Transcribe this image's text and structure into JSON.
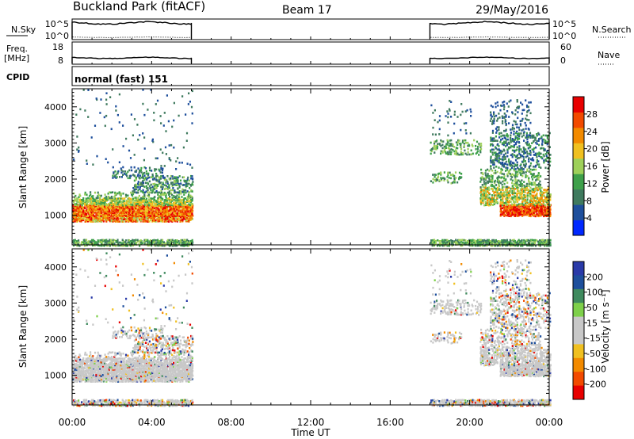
{
  "header": {
    "title": "Buckland Park (fitACF)",
    "beam": "Beam 17",
    "date": "29/May/2016"
  },
  "strips": {
    "nsky": {
      "label": "N.Sky",
      "ticks": [
        "10^5",
        "10^0"
      ],
      "right_label": "N.Search",
      "right_ticks": [
        "10^5",
        "10^0"
      ]
    },
    "freq": {
      "label_line1": "Freq.",
      "label_line2": "[MHz]",
      "ticks": [
        "18",
        "8"
      ],
      "right_label": "Nave",
      "right_ticks": [
        "60",
        "0"
      ]
    },
    "cpid": {
      "label": "CPID",
      "value": "normal (fast) 151"
    }
  },
  "colors": {
    "power": [
      "#0028ff",
      "#1e4f9c",
      "#3f7a5e",
      "#3ea04a",
      "#9ed05a",
      "#f0c020",
      "#f28a00",
      "#f24a00",
      "#e80000"
    ],
    "velocity": [
      "#e80000",
      "#f24a00",
      "#f28a00",
      "#f0c020",
      "#c8c8c8",
      "#c8c8c8",
      "#7ed04a",
      "#3f8a5e",
      "#1e4f9c",
      "#2a3aa8"
    ],
    "stripline": "#000000"
  },
  "chart_data": [
    {
      "type": "heatmap",
      "name": "power",
      "xlabel": "Time UT",
      "ylabel": "Slant Range [km]",
      "x_ticks": [
        "00:00",
        "04:00",
        "08:00",
        "12:00",
        "16:00",
        "20:00",
        "00:00"
      ],
      "x_range_hours": [
        0,
        24
      ],
      "y_ticks": [
        "1000",
        "2000",
        "3000",
        "4000"
      ],
      "y_range_km": [
        180,
        4500
      ],
      "colorbar_label": "Power [dB]",
      "colorbar_ticks": [
        "4",
        "8",
        "12",
        "16",
        "20",
        "24",
        "28"
      ],
      "colorbar_range": [
        0,
        32
      ],
      "data_intervals_hours": [
        [
          0,
          6
        ],
        [
          18,
          24
        ]
      ]
    },
    {
      "type": "heatmap",
      "name": "velocity",
      "xlabel": "Time UT",
      "ylabel": "Slant Range [km]",
      "x_ticks": [
        "00:00",
        "04:00",
        "08:00",
        "12:00",
        "16:00",
        "20:00",
        "00:00"
      ],
      "x_range_hours": [
        0,
        24
      ],
      "y_ticks": [
        "1000",
        "2000",
        "3000",
        "4000"
      ],
      "y_range_km": [
        180,
        4500
      ],
      "colorbar_label": "Velocity [m s⁻¹]",
      "colorbar_ticks": [
        "200",
        "100",
        "50",
        "15",
        "-15",
        "-50",
        "-100",
        "-200"
      ],
      "data_intervals_hours": [
        [
          0,
          6
        ],
        [
          18,
          24
        ]
      ]
    }
  ]
}
